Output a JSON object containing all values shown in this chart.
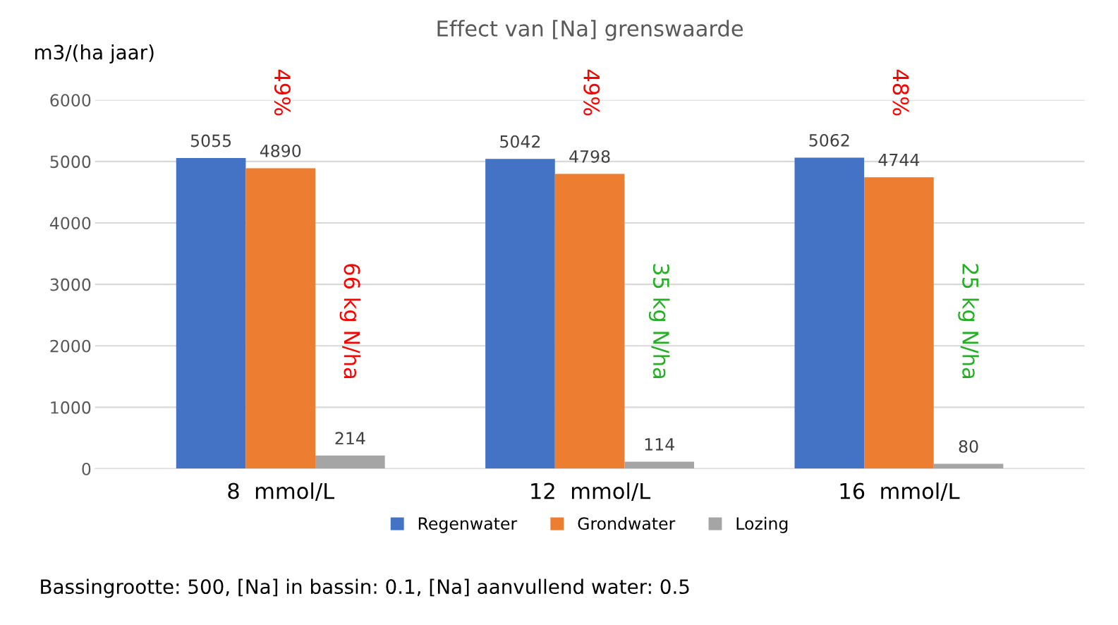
{
  "chart_data": {
    "type": "bar",
    "title": "Effect van [Na] grenswaarde",
    "ylabel": "m3/(ha jaar)",
    "categories": [
      "8  mmol/L",
      "12  mmol/L",
      "16  mmol/L"
    ],
    "series": [
      {
        "name": "Regenwater",
        "color": "#4472c4",
        "values": [
          5055,
          5042,
          5062
        ]
      },
      {
        "name": "Grondwater",
        "color": "#ed7d31",
        "values": [
          4890,
          4798,
          4744
        ]
      },
      {
        "name": "Lozing",
        "color": "#a5a5a5",
        "values": [
          214,
          114,
          80
        ]
      }
    ],
    "ylim": [
      0,
      6000
    ],
    "yticks": [
      0,
      1000,
      2000,
      3000,
      4000,
      5000,
      6000
    ],
    "grid": "y",
    "legend": "bottom",
    "data_labels": true,
    "annotations": [
      "49%",
      "66 kg N/ha",
      "49%",
      "35 kg N/ha",
      "48%",
      "25 kg N/ha",
      "Bassingrootte: 500, [Na] in bassin: 0.1, [Na] aanvullend water: 0.5"
    ]
  }
}
